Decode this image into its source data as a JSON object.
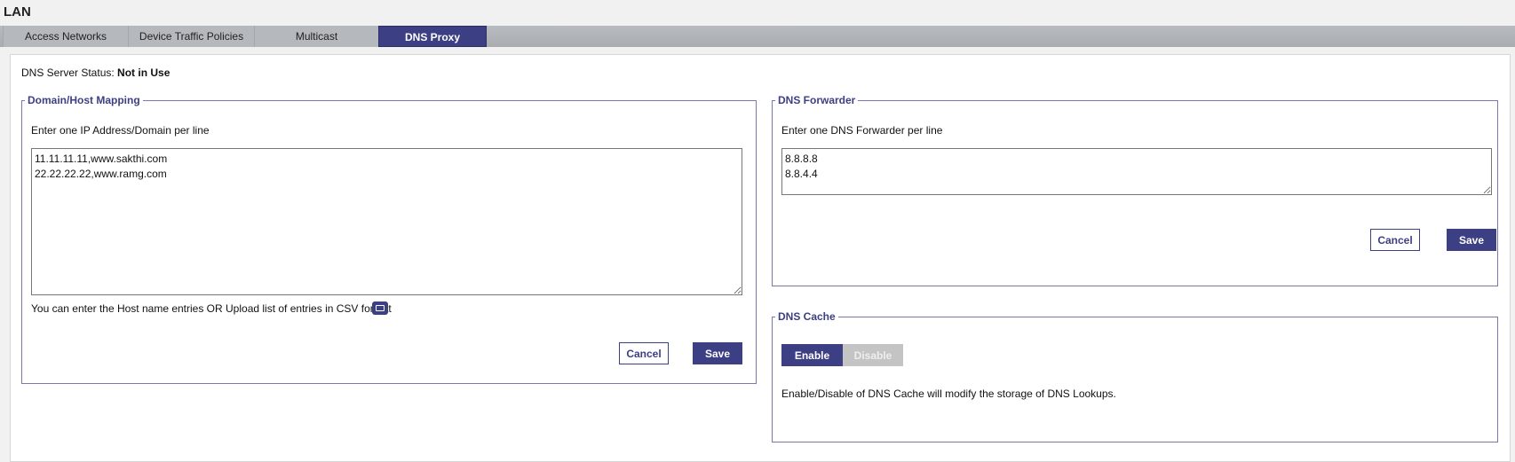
{
  "header": {
    "title": "LAN"
  },
  "tabs": [
    {
      "label": "Access Networks"
    },
    {
      "label": "Device Traffic Policies"
    },
    {
      "label": "Multicast"
    },
    {
      "label": "DNS Proxy",
      "active": true
    }
  ],
  "status": {
    "label": "DNS Server Status:",
    "value": "Not in Use"
  },
  "mapping": {
    "legend": "Domain/Host Mapping",
    "hint": "Enter one IP Address/Domain per line",
    "value": "11.11.11.11,www.sakthi.com\n22.22.22.22,www.ramg.com",
    "csv_note": "You can enter the Host name entries OR Upload list of entries in CSV format",
    "upload_icon": "folder-icon",
    "cancel": "Cancel",
    "save": "Save"
  },
  "forwarder": {
    "legend": "DNS Forwarder",
    "hint": "Enter one DNS Forwarder per line",
    "value": "8.8.8.8\n8.8.4.4",
    "cancel": "Cancel",
    "save": "Save"
  },
  "cache": {
    "legend": "DNS Cache",
    "enable": "Enable",
    "disable": "Disable",
    "selected": "Enable",
    "note": "Enable/Disable of DNS Cache will modify the storage of DNS Lookups."
  },
  "colors": {
    "accent": "#3d3f84",
    "border": "#7b78b0",
    "disabled": "#c4c4c4"
  }
}
